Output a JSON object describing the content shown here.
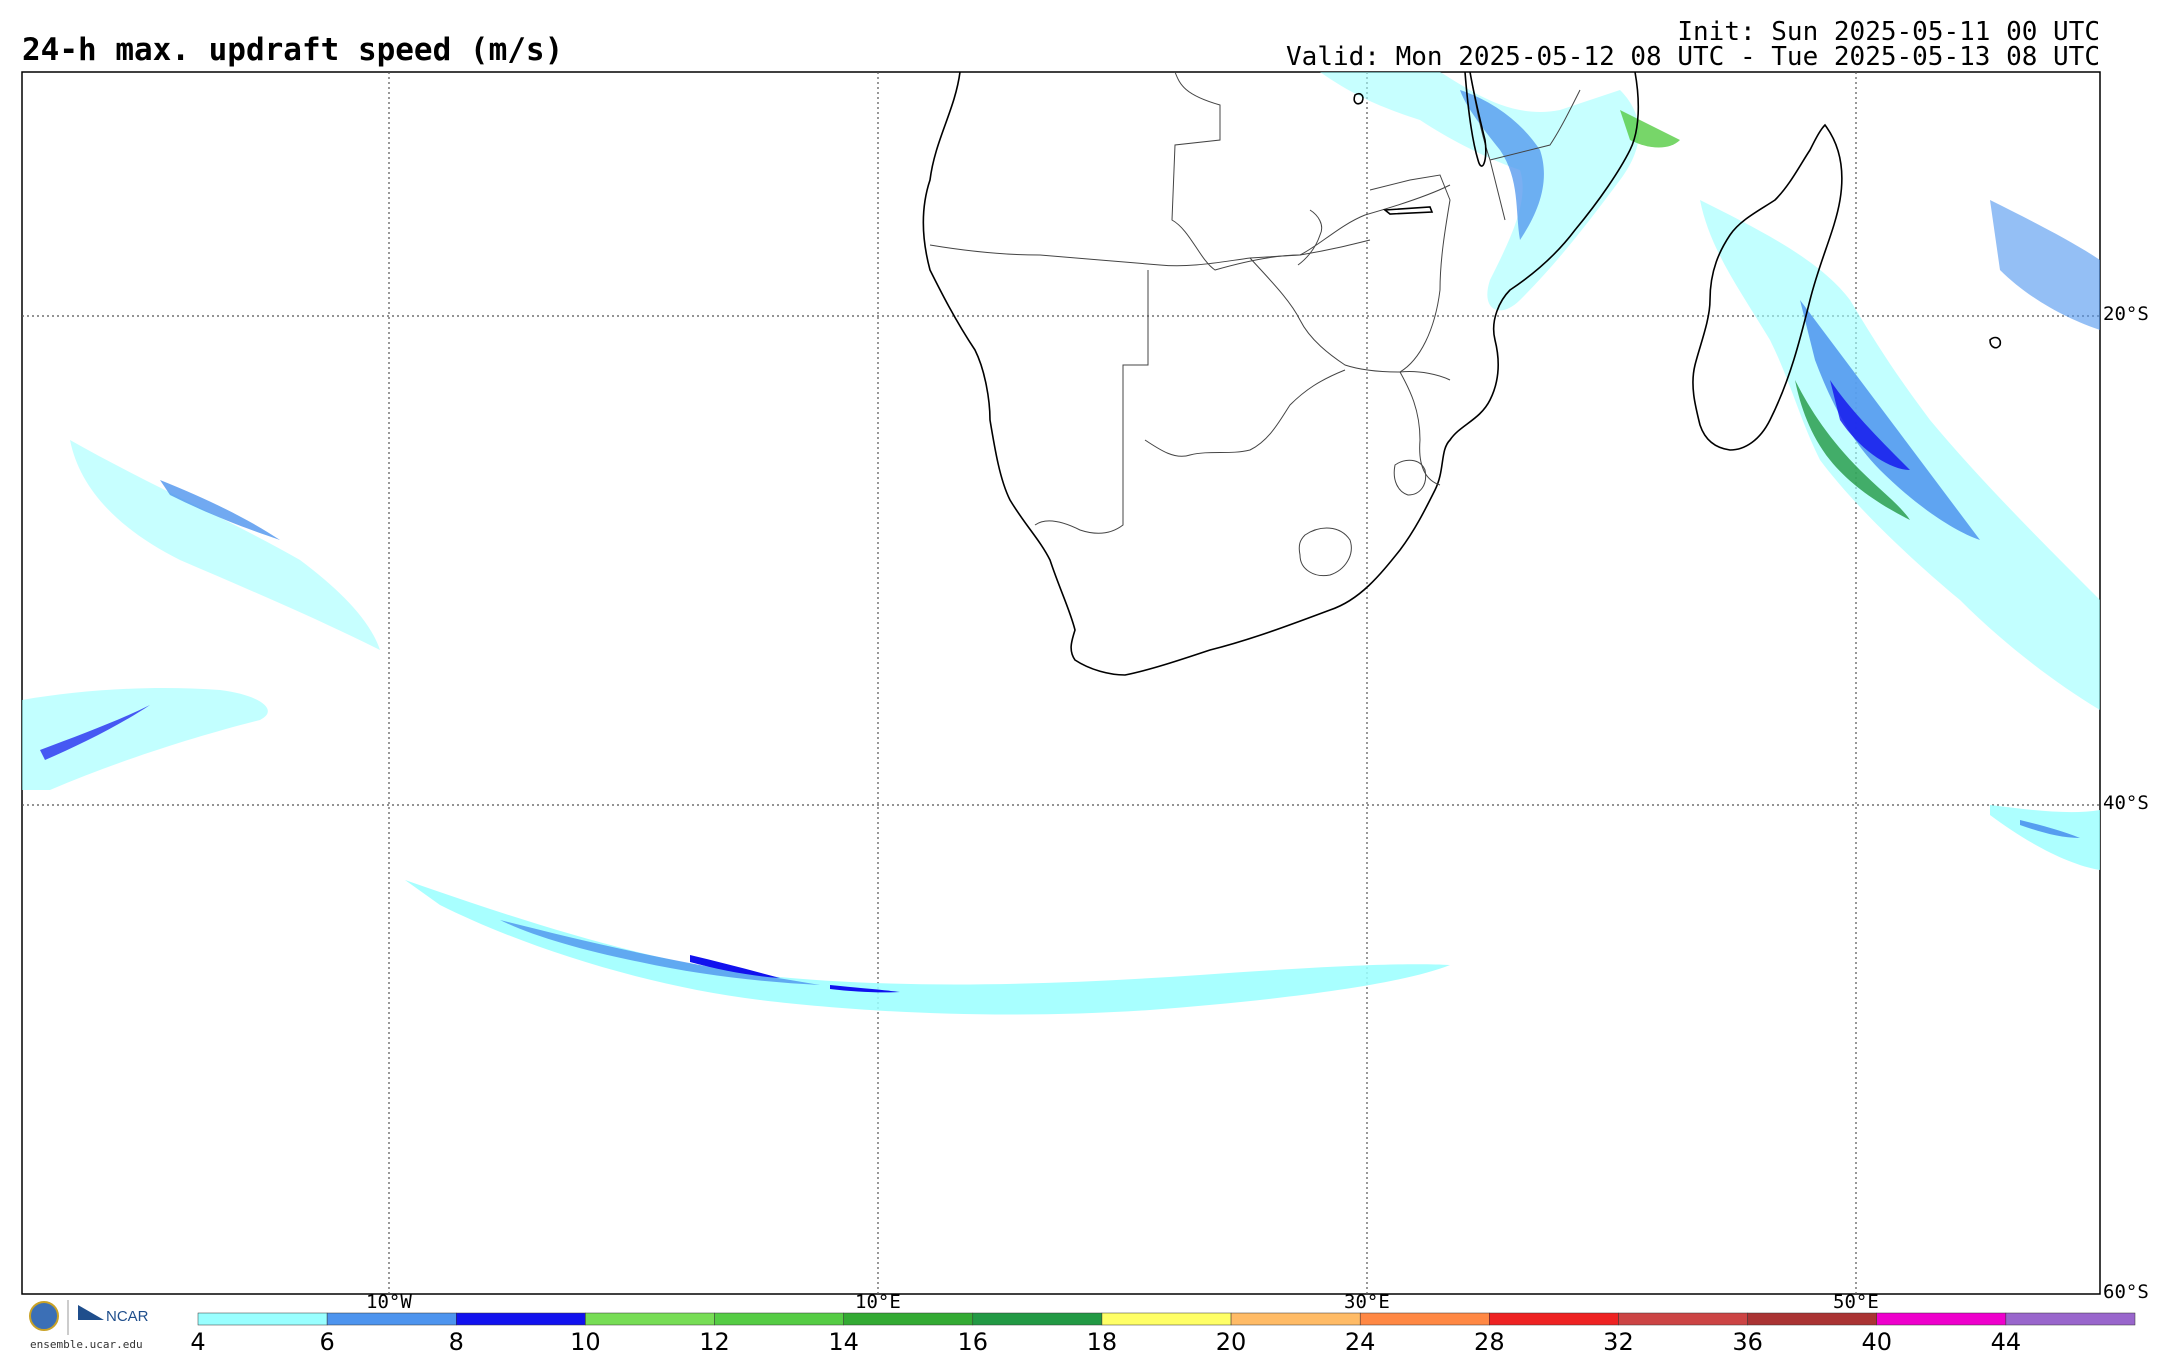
{
  "header": {
    "title": "24-h max. updraft speed (m/s)",
    "init": "Init: Sun 2025-05-11 00 UTC",
    "valid": "Valid: Mon 2025-05-12 08 UTC - Tue 2025-05-13 08 UTC"
  },
  "map": {
    "lat_labels": [
      "20°S",
      "40°S",
      "60°S"
    ],
    "lon_labels": [
      "10°W",
      "10°E",
      "30°E",
      "50°E"
    ]
  },
  "colorbar": {
    "labels": [
      "4",
      "6",
      "8",
      "10",
      "12",
      "14",
      "16",
      "18",
      "20",
      "24",
      "28",
      "32",
      "36",
      "40",
      "44"
    ],
    "colors": [
      "#99ffff",
      "#4d94ee",
      "#1111ee",
      "#77dd55",
      "#55cc44",
      "#33aa33",
      "#229944",
      "#ffff66",
      "#ffbb66",
      "#ff8844",
      "#ee2222",
      "#cc4444",
      "#aa3333",
      "#ee00cc",
      "#9966cc"
    ]
  },
  "footer": {
    "logo_text": "NCAR",
    "url": "ensemble.ucar.edu"
  }
}
